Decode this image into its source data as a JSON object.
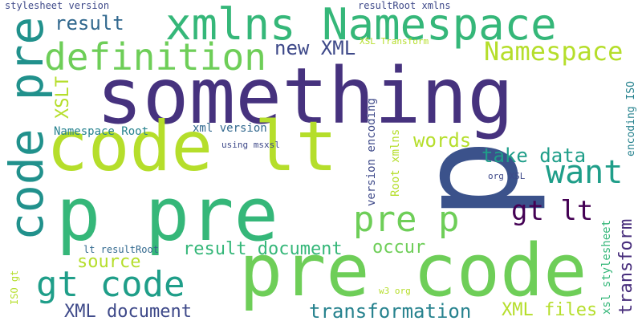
{
  "words": [
    {
      "text": "something",
      "color": "#46327e",
      "size": 96,
      "vertical": false
    },
    {
      "text": "p",
      "color": "#3b528b",
      "size": 170,
      "vertical": true
    },
    {
      "text": "code lt",
      "color": "#b5de2b",
      "size": 86,
      "vertical": false
    },
    {
      "text": "p pre",
      "color": "#35b779",
      "size": 92,
      "vertical": false
    },
    {
      "text": "pre code",
      "color": "#6ece58",
      "size": 90,
      "vertical": false
    },
    {
      "text": "xmlns Namespace",
      "color": "#35b779",
      "size": 54,
      "vertical": false
    },
    {
      "text": "code pre",
      "color": "#21918c",
      "size": 58,
      "vertical": true
    },
    {
      "text": "definition",
      "color": "#6ece58",
      "size": 46,
      "vertical": false
    },
    {
      "text": "want",
      "color": "#1f9e89",
      "size": 40,
      "vertical": false
    },
    {
      "text": "pre p",
      "color": "#6ece58",
      "size": 44,
      "vertical": false
    },
    {
      "text": "gt code",
      "color": "#1f9e89",
      "size": 44,
      "vertical": false
    },
    {
      "text": "Namespace",
      "color": "#b5de2b",
      "size": 32,
      "vertical": false
    },
    {
      "text": "gt lt",
      "color": "#440154",
      "size": 34,
      "vertical": false
    },
    {
      "text": "take data",
      "color": "#1f9e89",
      "size": 24,
      "vertical": false
    },
    {
      "text": "words",
      "color": "#b5de2b",
      "size": 24,
      "vertical": false
    },
    {
      "text": "result",
      "color": "#31688e",
      "size": 24,
      "vertical": false
    },
    {
      "text": "new XML",
      "color": "#3e4989",
      "size": 24,
      "vertical": false
    },
    {
      "text": "occur",
      "color": "#6ece58",
      "size": 22,
      "vertical": false
    },
    {
      "text": "source",
      "color": "#b5de2b",
      "size": 22,
      "vertical": false
    },
    {
      "text": "result document",
      "color": "#35b779",
      "size": 22,
      "vertical": false
    },
    {
      "text": "XML document",
      "color": "#3e4989",
      "size": 22,
      "vertical": false
    },
    {
      "text": "transformation",
      "color": "#26828e",
      "size": 24,
      "vertical": false
    },
    {
      "text": "XML files",
      "color": "#b5de2b",
      "size": 22,
      "vertical": false
    },
    {
      "text": "transform",
      "color": "#472d7b",
      "size": 22,
      "vertical": true
    },
    {
      "text": "XSLT",
      "color": "#b5de2b",
      "size": 22,
      "vertical": true
    },
    {
      "text": "Namespace Root",
      "color": "#26828e",
      "size": 14,
      "vertical": false
    },
    {
      "text": "xml version",
      "color": "#31688e",
      "size": 14,
      "vertical": false
    },
    {
      "text": "using msxsl",
      "color": "#3e4989",
      "size": 11,
      "vertical": false
    },
    {
      "text": "stylesheet version",
      "color": "#3e4989",
      "size": 12,
      "vertical": false
    },
    {
      "text": "resultRoot xmlns",
      "color": "#3e4989",
      "size": 12,
      "vertical": false
    },
    {
      "text": "XSL Transform",
      "color": "#b5de2b",
      "size": 11,
      "vertical": false
    },
    {
      "text": "version encoding",
      "color": "#3e4989",
      "size": 14,
      "vertical": true
    },
    {
      "text": "Root xmlns",
      "color": "#b5de2b",
      "size": 14,
      "vertical": true
    },
    {
      "text": "org XSL",
      "color": "#3e4989",
      "size": 11,
      "vertical": false
    },
    {
      "text": "encoding ISO",
      "color": "#26828e",
      "size": 13,
      "vertical": true
    },
    {
      "text": "xsl stylesheet",
      "color": "#35b779",
      "size": 14,
      "vertical": true
    },
    {
      "text": "lt resultRoot",
      "color": "#31688e",
      "size": 12,
      "vertical": false
    },
    {
      "text": "w3 org",
      "color": "#b5de2b",
      "size": 11,
      "vertical": false
    },
    {
      "text": "ISO gt",
      "color": "#b5de2b",
      "size": 12,
      "vertical": true
    }
  ]
}
